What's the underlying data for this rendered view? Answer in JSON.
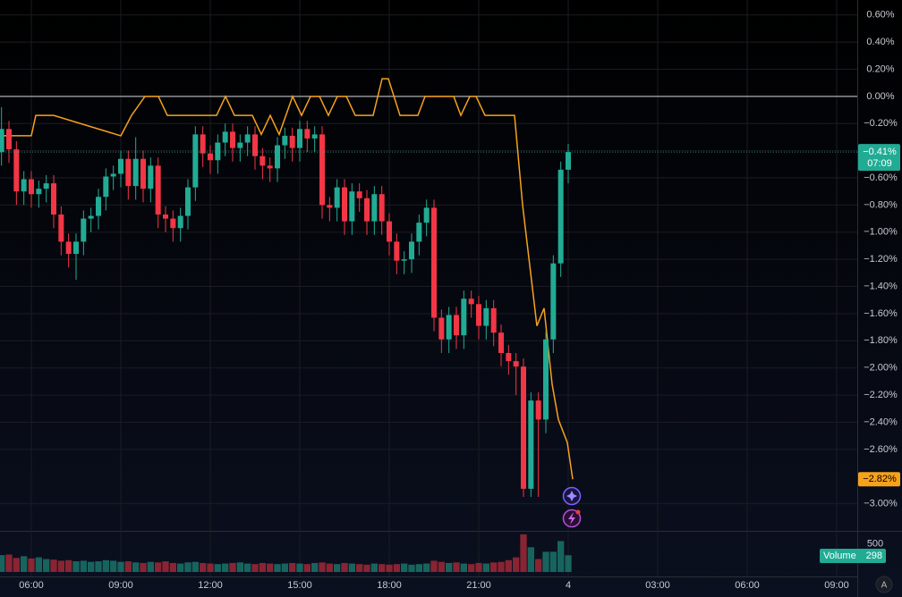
{
  "chart_data": {
    "type": "candlestick",
    "x": [
      5,
      5.25,
      5.5,
      5.75,
      6,
      6.25,
      6.5,
      6.75,
      7,
      7.25,
      7.5,
      7.75,
      8,
      8.25,
      8.5,
      8.75,
      9,
      9.25,
      9.5,
      9.75,
      10,
      10.25,
      10.5,
      10.75,
      11,
      11.25,
      11.5,
      11.75,
      12,
      12.25,
      12.5,
      12.75,
      13,
      13.25,
      13.5,
      13.75,
      14,
      14.25,
      14.5,
      14.75,
      15,
      15.25,
      15.5,
      15.75,
      16,
      16.25,
      16.5,
      16.75,
      17,
      17.25,
      17.5,
      17.75,
      18,
      18.25,
      18.5,
      18.75,
      19,
      19.25,
      19.5,
      19.75,
      20,
      20.25,
      20.5,
      20.75,
      21,
      21.25,
      21.5,
      21.75,
      22,
      22.25,
      22.5,
      22.75,
      23,
      23.25,
      23.5,
      23.75,
      24
    ],
    "open": [
      -0.41,
      -0.24,
      -0.39,
      -0.7,
      -0.61,
      -0.72,
      -0.68,
      -0.64,
      -0.87,
      -1.07,
      -1.16,
      -1.07,
      -0.9,
      -0.88,
      -0.74,
      -0.59,
      -0.57,
      -0.46,
      -0.66,
      -0.46,
      -0.68,
      -0.51,
      -0.87,
      -0.9,
      -0.97,
      -0.88,
      -0.67,
      -0.28,
      -0.42,
      -0.47,
      -0.34,
      -0.26,
      -0.38,
      -0.34,
      -0.28,
      -0.44,
      -0.51,
      -0.53,
      -0.36,
      -0.29,
      -0.38,
      -0.24,
      -0.31,
      -0.28,
      -0.8,
      -0.82,
      -0.67,
      -0.92,
      -0.7,
      -0.75,
      -0.92,
      -0.72,
      -0.92,
      -1.07,
      -1.21,
      -1.2,
      -1.07,
      -0.93,
      -0.82,
      -1.63,
      -1.79,
      -1.61,
      -1.76,
      -1.49,
      -1.53,
      -1.69,
      -1.56,
      -1.74,
      -1.89,
      -1.95,
      -1.99,
      -2.89,
      -2.24,
      -2.38,
      -1.79,
      -1.23,
      -0.54
    ],
    "high": [
      -0.08,
      -0.18,
      -0.33,
      -0.55,
      -0.55,
      -0.62,
      -0.58,
      -0.58,
      -0.81,
      -1.01,
      -1.01,
      -0.84,
      -0.82,
      -0.68,
      -0.53,
      -0.51,
      -0.4,
      -0.4,
      -0.3,
      -0.4,
      -0.45,
      -0.45,
      -0.81,
      -0.84,
      -0.82,
      -0.61,
      -0.22,
      -0.22,
      -0.36,
      -0.28,
      -0.2,
      -0.2,
      -0.28,
      -0.22,
      -0.22,
      -0.38,
      -0.45,
      -0.3,
      -0.23,
      -0.23,
      -0.18,
      -0.18,
      -0.22,
      -0.22,
      -0.74,
      -0.61,
      -0.61,
      -0.64,
      -0.64,
      -0.69,
      -0.66,
      -0.66,
      -0.86,
      -1.01,
      -1.14,
      -1.01,
      -0.87,
      -0.76,
      -0.76,
      -1.57,
      -1.55,
      -1.55,
      -1.43,
      -1.43,
      -1.47,
      -1.5,
      -1.5,
      -1.68,
      -1.83,
      -1.89,
      -1.93,
      -2.18,
      -2.18,
      -1.73,
      -1.17,
      -0.48,
      -0.35
    ],
    "low": [
      -0.51,
      -0.49,
      -0.8,
      -0.8,
      -0.82,
      -0.82,
      -0.78,
      -0.97,
      -1.17,
      -1.26,
      -1.35,
      -1.17,
      -1.0,
      -0.98,
      -0.84,
      -0.69,
      -0.67,
      -0.76,
      -0.76,
      -0.78,
      -0.78,
      -0.97,
      -1.0,
      -1.07,
      -1.07,
      -0.98,
      -0.77,
      -0.52,
      -0.57,
      -0.57,
      -0.44,
      -0.48,
      -0.48,
      -0.44,
      -0.54,
      -0.61,
      -0.63,
      -0.63,
      -0.46,
      -0.48,
      -0.48,
      -0.41,
      -0.41,
      -0.9,
      -0.92,
      -0.92,
      -1.02,
      -1.02,
      -0.85,
      -1.02,
      -1.02,
      -1.02,
      -1.17,
      -1.31,
      -1.31,
      -1.3,
      -1.17,
      -1.03,
      -1.73,
      -1.89,
      -1.89,
      -1.86,
      -1.86,
      -1.63,
      -1.79,
      -1.79,
      -1.84,
      -1.99,
      -2.05,
      -2.2,
      -2.95,
      -2.95,
      -2.95,
      -2.48,
      -1.89,
      -1.33,
      -0.64
    ],
    "close": [
      -0.24,
      -0.39,
      -0.7,
      -0.61,
      -0.72,
      -0.68,
      -0.64,
      -0.87,
      -1.07,
      -1.16,
      -1.07,
      -0.9,
      -0.88,
      -0.74,
      -0.59,
      -0.57,
      -0.46,
      -0.66,
      -0.46,
      -0.68,
      -0.51,
      -0.87,
      -0.9,
      -0.97,
      -0.88,
      -0.67,
      -0.28,
      -0.42,
      -0.47,
      -0.34,
      -0.26,
      -0.38,
      -0.34,
      -0.28,
      -0.44,
      -0.51,
      -0.53,
      -0.36,
      -0.29,
      -0.38,
      -0.24,
      -0.31,
      -0.28,
      -0.8,
      -0.82,
      -0.67,
      -0.92,
      -0.7,
      -0.75,
      -0.92,
      -0.72,
      -0.92,
      -1.07,
      -1.21,
      -1.2,
      -1.07,
      -0.93,
      -0.82,
      -1.63,
      -1.79,
      -1.61,
      -1.76,
      -1.49,
      -1.53,
      -1.69,
      -1.56,
      -1.74,
      -1.89,
      -1.95,
      -1.99,
      -2.89,
      -2.24,
      -2.38,
      -1.79,
      -1.23,
      -0.54,
      -0.41
    ],
    "up_color": "#22ab94",
    "down_color": "#f23645",
    "last_label": "−0.41%",
    "countdown": "07:09",
    "xlim": [
      4.95,
      33.69
    ],
    "xticks": [
      {
        "value": 6,
        "label": "06:00"
      },
      {
        "value": 9,
        "label": "09:00"
      },
      {
        "value": 12,
        "label": "12:00"
      },
      {
        "value": 15,
        "label": "15:00"
      },
      {
        "value": 18,
        "label": "18:00"
      },
      {
        "value": 21,
        "label": "21:00"
      },
      {
        "value": 24,
        "label": "4"
      },
      {
        "value": 27,
        "label": "03:00"
      },
      {
        "value": 30,
        "label": "06:00"
      },
      {
        "value": 33,
        "label": "09:00"
      }
    ],
    "ylim": [
      -3.2,
      0.71
    ],
    "yticks": [
      {
        "value": 0.6,
        "label": "0.60%"
      },
      {
        "value": 0.4,
        "label": "0.40%"
      },
      {
        "value": 0.2,
        "label": "0.20%"
      },
      {
        "value": 0,
        "label": "0.00%"
      },
      {
        "value": -0.2,
        "label": "−0.20%"
      },
      {
        "value": -0.4,
        "label": "−0.40%"
      },
      {
        "value": -0.6,
        "label": "−0.60%"
      },
      {
        "value": -0.8,
        "label": "−0.80%"
      },
      {
        "value": -1.0,
        "label": "−1.00%"
      },
      {
        "value": -1.2,
        "label": "−1.20%"
      },
      {
        "value": -1.4,
        "label": "−1.40%"
      },
      {
        "value": -1.6,
        "label": "−1.60%"
      },
      {
        "value": -1.8,
        "label": "−1.80%"
      },
      {
        "value": -2.0,
        "label": "−2.00%"
      },
      {
        "value": -2.2,
        "label": "−2.20%"
      },
      {
        "value": -2.4,
        "label": "−2.40%"
      },
      {
        "value": -2.6,
        "label": "−2.60%"
      },
      {
        "value": -3.0,
        "label": "−3.00%"
      }
    ],
    "grid": true,
    "line": {
      "color": "#f7a21b",
      "x": [
        4.95,
        6,
        6.15,
        6.75,
        9,
        9.36,
        9.81,
        10.26,
        10.56,
        12.21,
        12.51,
        12.81,
        13.41,
        13.71,
        14.01,
        14.31,
        14.76,
        15.06,
        15.36,
        15.66,
        15.96,
        16.26,
        16.56,
        16.86,
        17.46,
        17.76,
        17.97,
        18.36,
        18.96,
        19.2,
        20.16,
        20.4,
        20.7,
        20.91,
        21.21,
        22.2,
        22.47,
        22.95,
        23.19,
        23.46,
        23.67,
        23.97,
        24.15
      ],
      "values": [
        -0.29,
        -0.29,
        -0.14,
        -0.14,
        -0.29,
        -0.14,
        0,
        0,
        -0.14,
        -0.14,
        0,
        -0.14,
        -0.14,
        -0.28,
        -0.14,
        -0.28,
        0,
        -0.14,
        0,
        0,
        -0.14,
        0,
        0,
        -0.14,
        -0.14,
        0.13,
        0.13,
        -0.14,
        -0.14,
        0,
        0,
        -0.14,
        0,
        0,
        -0.14,
        -0.14,
        -0.8,
        -1.69,
        -1.56,
        -2.12,
        -2.38,
        -2.55,
        -2.82
      ],
      "last_label": "−2.82%"
    },
    "volume": {
      "title": "Volume",
      "values": [
        300,
        310,
        250,
        280,
        240,
        260,
        230,
        220,
        200,
        210,
        190,
        200,
        180,
        190,
        210,
        200,
        180,
        190,
        170,
        160,
        180,
        170,
        190,
        160,
        150,
        170,
        180,
        160,
        150,
        140,
        150,
        160,
        170,
        150,
        140,
        160,
        150,
        140,
        150,
        160,
        150,
        140,
        160,
        170,
        150,
        140,
        160,
        150,
        140,
        130,
        150,
        140,
        130,
        140,
        150,
        130,
        140,
        150,
        200,
        180,
        160,
        170,
        150,
        140,
        160,
        150,
        170,
        180,
        210,
        260,
        670,
        440,
        230,
        360,
        360,
        550,
        298
      ],
      "ylim": [
        0,
        700
      ],
      "yticks": [
        500
      ]
    }
  }
}
